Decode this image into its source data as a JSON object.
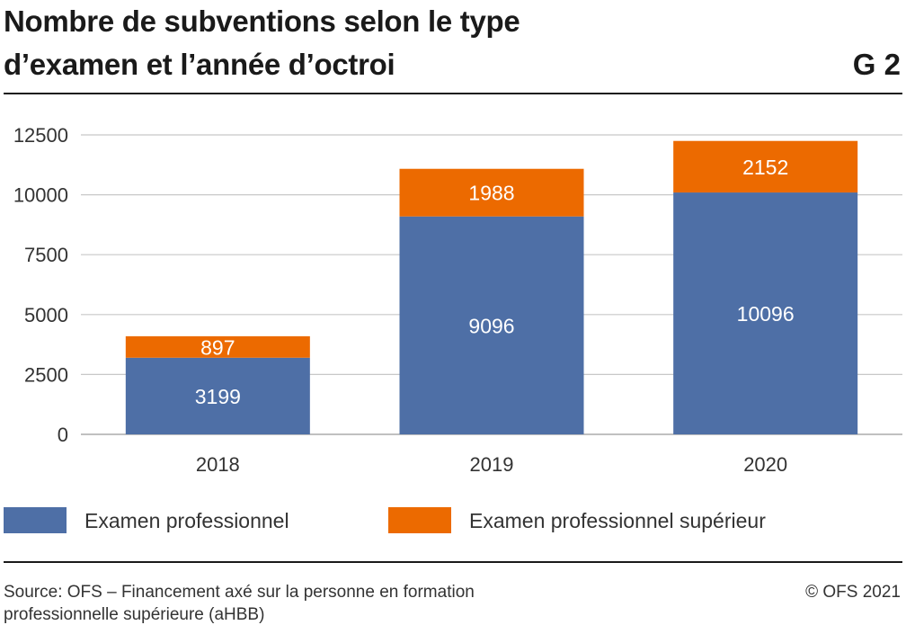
{
  "header": {
    "title_line1": "Nombre de subventions selon le type",
    "title_line2": "d’examen et l’année d’octroi",
    "chart_number": "G 2"
  },
  "chart_data": {
    "type": "bar",
    "stacked": true,
    "categories": [
      "2018",
      "2019",
      "2020"
    ],
    "series": [
      {
        "name": "Examen professionnel",
        "values": [
          3199,
          9096,
          10096
        ],
        "color": "#4e6fa6"
      },
      {
        "name": "Examen professionnel supérieur",
        "values": [
          897,
          1988,
          2152
        ],
        "color": "#ec6a00"
      }
    ],
    "yticks": [
      0,
      2500,
      5000,
      7500,
      10000,
      12500
    ],
    "ylim": [
      0,
      12500
    ],
    "grid": true,
    "legend_position": "bottom"
  },
  "legend": {
    "items": [
      {
        "label": "Examen professionnel",
        "color": "#4e6fa6"
      },
      {
        "label": "Examen professionnel supérieur",
        "color": "#ec6a00"
      }
    ]
  },
  "footer": {
    "source_line1": "Source: OFS – Financement axé sur la personne en formation",
    "source_line2": "professionnelle supérieure (aHBB)",
    "copyright": "© OFS 2021"
  }
}
